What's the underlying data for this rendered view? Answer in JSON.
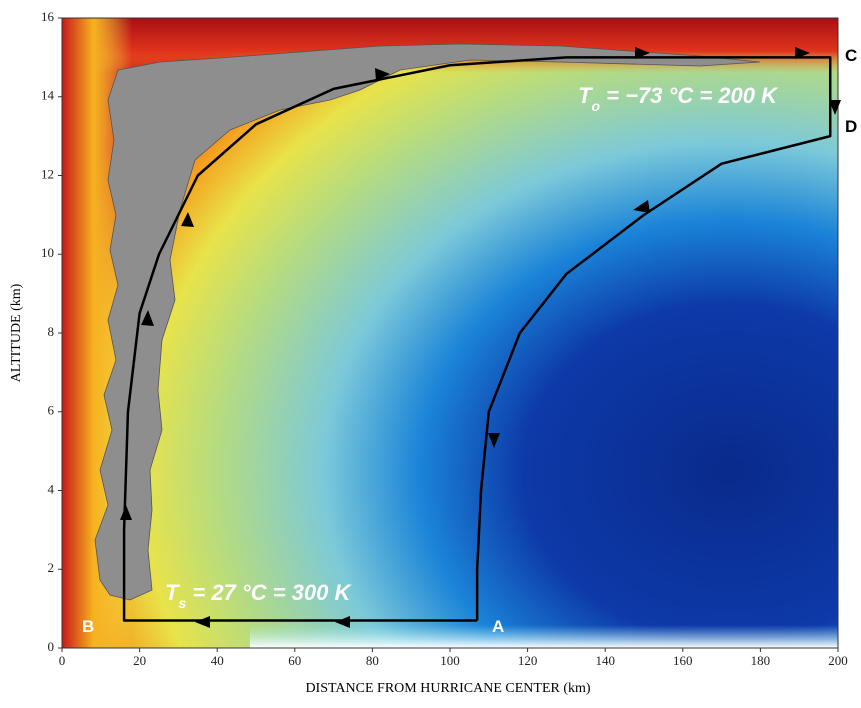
{
  "chart_data": {
    "type": "line",
    "xlabel": "DISTANCE FROM HURRICANE CENTER (km)",
    "ylabel": "ALTITUDE (km)",
    "xlim": [
      0,
      200
    ],
    "ylim": [
      0,
      16
    ],
    "xticks": [
      0,
      20,
      40,
      60,
      80,
      100,
      120,
      140,
      160,
      180,
      200
    ],
    "yticks": [
      0,
      2,
      4,
      6,
      8,
      10,
      12,
      14,
      16
    ],
    "series": [
      {
        "color": "#000000",
        "x": [
          107,
          16,
          16,
          17,
          20,
          25,
          35,
          50,
          70,
          100,
          130,
          160,
          198,
          198,
          170,
          150,
          130,
          118,
          110,
          108,
          107,
          107
        ],
        "values": [
          0.7,
          0.7,
          3,
          6,
          8.5,
          10,
          12,
          13.3,
          14.2,
          14.8,
          15,
          15,
          15,
          13,
          12.3,
          11,
          9.5,
          8,
          6,
          4,
          2,
          0.7
        ]
      }
    ],
    "annotations": {
      "outflow_temperature": {
        "symbol": "T",
        "subscript": "o",
        "text": " = −73 °C = 200 K"
      },
      "surface_temperature": {
        "symbol": "T",
        "subscript": "s",
        "text": " = 27 °C = 300 K"
      }
    },
    "point_labels": [
      "A",
      "B",
      "C",
      "D"
    ]
  }
}
